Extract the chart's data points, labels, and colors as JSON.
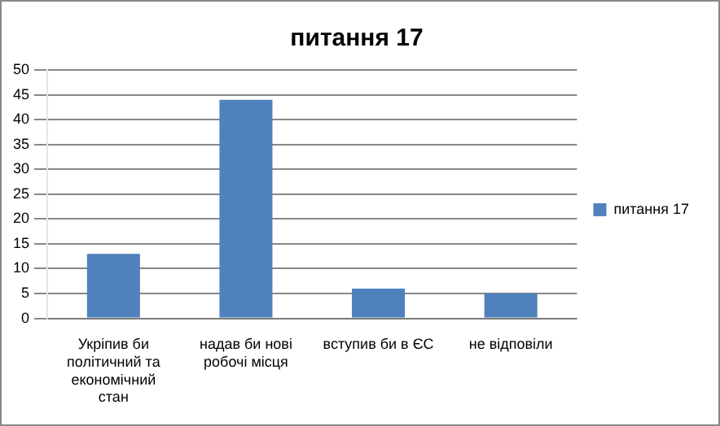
{
  "chart_data": {
    "type": "bar",
    "title": "питання 17",
    "categories": [
      "Укріпив би політичний та економічний стан",
      "надав би нові робочі місця",
      "вступив би в ЄС",
      "не відповіли"
    ],
    "series": [
      {
        "name": "питання 17",
        "color": "#4f81bd",
        "values": [
          13,
          44,
          6,
          5
        ]
      }
    ],
    "ylim": [
      0,
      50
    ],
    "yticks": [
      0,
      5,
      10,
      15,
      20,
      25,
      30,
      35,
      40,
      45,
      50
    ],
    "grid": "y",
    "legend": "right"
  }
}
